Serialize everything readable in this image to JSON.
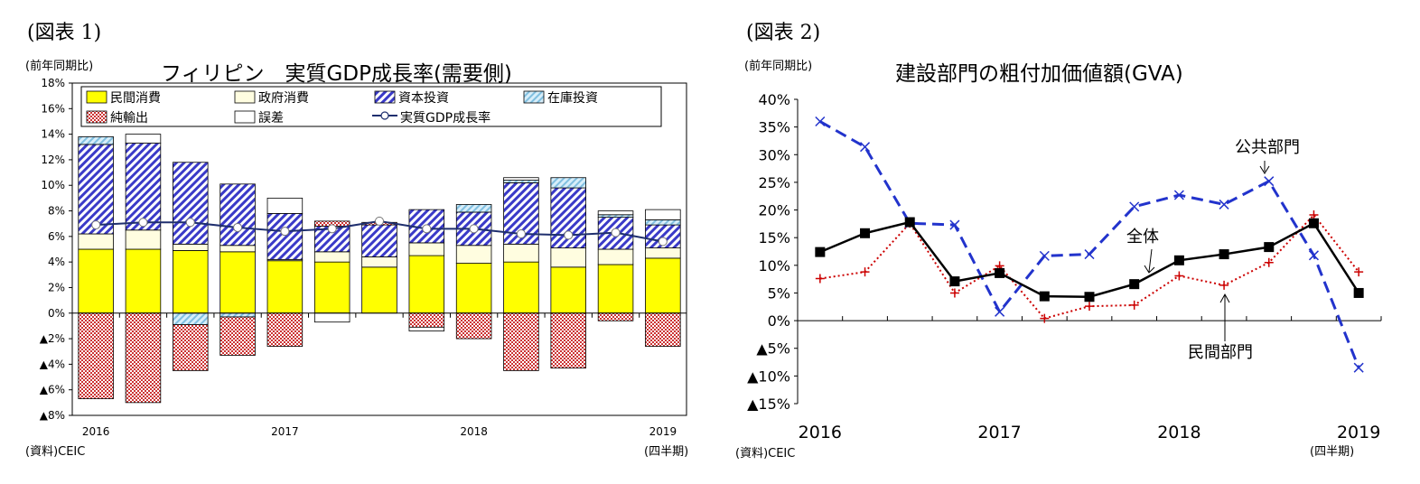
{
  "charts": [
    {
      "figure_label": "(図表 1)",
      "unit_label": "(前年同期比)",
      "source_label": "(資料)CEIC",
      "period_label": "(四半期)",
      "colors": {
        "private_consumption": "#ffff00",
        "government_consumption": "#fffde0",
        "capital_investment": "#3333cc",
        "inventory_investment": "#a8d4ec",
        "net_exports": "#cc3333",
        "errors": "#ffffff",
        "gdp_line": "#1f2f6e"
      }
    },
    {
      "figure_label": "(図表 2)",
      "unit_label": "(前年同期比)",
      "source_label": "(資料)CEIC",
      "period_label": "(四半期)",
      "annotations": [
        "公共部門",
        "全体",
        "民間部門"
      ],
      "colors": {
        "public": "#2233cc",
        "overall": "#000000",
        "private": "#cc0000"
      }
    }
  ],
  "chart_data": [
    {
      "type": "bar",
      "title": "フィリピン　実質GDP成長率(需要側)",
      "stacked": true,
      "categories": [
        "2016Q1",
        "2016Q2",
        "2016Q3",
        "2016Q4",
        "2017Q1",
        "2017Q2",
        "2017Q3",
        "2017Q4",
        "2018Q1",
        "2018Q2",
        "2018Q3",
        "2018Q4",
        "2019Q1"
      ],
      "x_tick_labels": [
        "2016",
        "",
        "",
        "",
        "2017",
        "",
        "",
        "",
        "2018",
        "",
        "",
        "",
        "2019"
      ],
      "ylim": [
        -8,
        18
      ],
      "y_ticks": [
        18,
        16,
        14,
        12,
        10,
        8,
        6,
        4,
        2,
        0,
        -2,
        -4,
        -6,
        -8
      ],
      "y_tick_labels": [
        "18%",
        "16%",
        "14%",
        "12%",
        "10%",
        "8%",
        "6%",
        "4%",
        "2%",
        "0%",
        "▲2%",
        "▲4%",
        "▲6%",
        "▲8%"
      ],
      "legend_position": "top",
      "series": [
        {
          "name": "民間消費",
          "key": "private_consumption",
          "values": [
            5.0,
            5.0,
            4.9,
            4.8,
            4.1,
            4.0,
            3.6,
            4.5,
            3.9,
            4.0,
            3.6,
            3.8,
            4.3
          ]
        },
        {
          "name": "政府消費",
          "key": "government_consumption",
          "values": [
            1.2,
            1.5,
            0.5,
            0.5,
            0.1,
            0.8,
            0.8,
            1.0,
            1.4,
            1.4,
            1.5,
            1.2,
            0.8
          ]
        },
        {
          "name": "資本投資",
          "key": "capital_investment",
          "values": [
            7.0,
            6.8,
            6.4,
            4.8,
            3.6,
            2.0,
            2.5,
            2.6,
            2.6,
            4.8,
            4.7,
            2.5,
            1.8
          ]
        },
        {
          "name": "在庫投資",
          "key": "inventory_investment",
          "values": [
            0.6,
            0.0,
            -0.9,
            -0.3,
            0.0,
            0.0,
            0.0,
            0.0,
            0.6,
            0.2,
            0.8,
            0.2,
            0.4
          ]
        },
        {
          "name": "純輸出",
          "key": "net_exports",
          "values": [
            -6.7,
            -7.0,
            -3.6,
            -3.0,
            -2.6,
            0.4,
            0.2,
            -1.1,
            -2.0,
            -4.5,
            -4.3,
            -0.6,
            -2.6
          ]
        },
        {
          "name": "誤差",
          "key": "errors",
          "values": [
            0.0,
            0.7,
            0.0,
            0.0,
            1.2,
            -0.7,
            0.0,
            -0.3,
            0.0,
            0.2,
            0.0,
            0.3,
            0.8
          ]
        }
      ],
      "line_series": {
        "name": "実質GDP成長率",
        "values": [
          6.9,
          7.1,
          7.1,
          6.7,
          6.4,
          6.6,
          7.2,
          6.6,
          6.6,
          6.2,
          6.1,
          6.3,
          5.6
        ]
      }
    },
    {
      "type": "line",
      "title": "建設部門の粗付加価値額(GVA)",
      "categories": [
        "2016Q1",
        "2016Q2",
        "2016Q3",
        "2016Q4",
        "2017Q1",
        "2017Q2",
        "2017Q3",
        "2017Q4",
        "2018Q1",
        "2018Q2",
        "2018Q3",
        "2018Q4",
        "2019Q1"
      ],
      "x_tick_labels": [
        "2016",
        "",
        "",
        "",
        "2017",
        "",
        "",
        "",
        "2018",
        "",
        "",
        "",
        "2019"
      ],
      "ylim": [
        -15,
        40
      ],
      "y_ticks": [
        40,
        35,
        30,
        25,
        20,
        15,
        10,
        5,
        0,
        -5,
        -10,
        -15
      ],
      "y_tick_labels": [
        "40%",
        "35%",
        "30%",
        "25%",
        "20%",
        "15%",
        "10%",
        "5%",
        "0%",
        "▲5%",
        "▲10%",
        "▲15%"
      ],
      "series": [
        {
          "name": "公共部門",
          "key": "public",
          "values": [
            36.0,
            31.4,
            17.6,
            17.3,
            1.6,
            11.7,
            12.0,
            20.6,
            22.7,
            21.0,
            25.2,
            11.8,
            -8.5
          ]
        },
        {
          "name": "全体",
          "key": "overall",
          "values": [
            12.4,
            15.8,
            17.8,
            7.1,
            8.6,
            4.4,
            4.3,
            6.6,
            10.9,
            12.0,
            13.3,
            17.6,
            5.0
          ]
        },
        {
          "name": "民間部門",
          "key": "private",
          "values": [
            7.6,
            8.8,
            17.6,
            5.0,
            9.9,
            0.4,
            2.6,
            2.8,
            8.1,
            6.4,
            10.5,
            19.1,
            8.8
          ]
        }
      ]
    }
  ]
}
